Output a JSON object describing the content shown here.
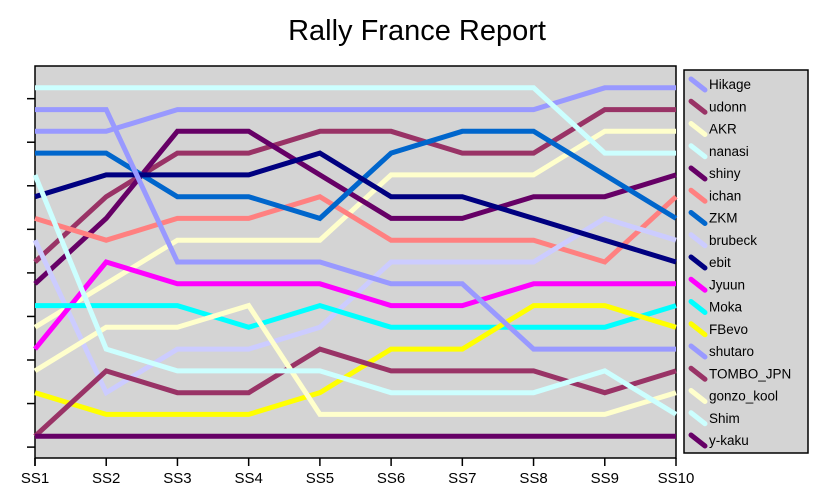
{
  "chart_data": {
    "type": "line",
    "title": "Rally France Report",
    "x_categories": [
      "SS1",
      "SS2",
      "SS3",
      "SS4",
      "SS5",
      "SS6",
      "SS7",
      "SS8",
      "SS9",
      "SS10"
    ],
    "y_axis": {
      "tick_labels_visible": false,
      "inverted": true,
      "min": 0,
      "max": 18,
      "ticks_every": 2,
      "gridlines": false,
      "values_meaning": "standings position 1-17 per special stage"
    },
    "legend_position": "right",
    "series": [
      {
        "name": "Hikage",
        "color": "#9999FF",
        "ranks": [
          3,
          3,
          2,
          2,
          2,
          2,
          2,
          2,
          1,
          1
        ]
      },
      {
        "name": "udonn",
        "color": "#993366",
        "ranks": [
          9,
          6,
          4,
          4,
          3,
          3,
          4,
          4,
          2,
          2
        ]
      },
      {
        "name": "AKR",
        "color": "#FFFFCC",
        "ranks": [
          12,
          10,
          8,
          8,
          8,
          5,
          5,
          5,
          3,
          3
        ]
      },
      {
        "name": "nanasi",
        "color": "#CCFFFF",
        "ranks": [
          1,
          1,
          1,
          1,
          1,
          1,
          1,
          1,
          4,
          4
        ]
      },
      {
        "name": "shiny",
        "color": "#660066",
        "ranks": [
          10,
          7,
          3,
          3,
          5,
          7,
          7,
          6,
          6,
          5
        ]
      },
      {
        "name": "ichan",
        "color": "#FF8080",
        "ranks": [
          7,
          8,
          7,
          7,
          6,
          8,
          8,
          8,
          9,
          6
        ]
      },
      {
        "name": "ZKM",
        "color": "#0066CC",
        "ranks": [
          4,
          4,
          6,
          6,
          7,
          4,
          3,
          3,
          5,
          7
        ]
      },
      {
        "name": "brubeck",
        "color": "#CCCCFF",
        "ranks": [
          8,
          15,
          13,
          13,
          12,
          9,
          9,
          9,
          7,
          8
        ]
      },
      {
        "name": "ebit",
        "color": "#000080",
        "ranks": [
          6,
          5,
          5,
          5,
          4,
          6,
          6,
          7,
          8,
          9
        ]
      },
      {
        "name": "Jyuun",
        "color": "#FF00FF",
        "ranks": [
          13,
          9,
          10,
          10,
          10,
          11,
          11,
          10,
          10,
          10
        ]
      },
      {
        "name": "Moka",
        "color": "#00FFFF",
        "ranks": [
          11,
          11,
          11,
          12,
          11,
          12,
          12,
          12,
          12,
          11
        ]
      },
      {
        "name": "FBevo",
        "color": "#FFFF00",
        "ranks": [
          15,
          16,
          16,
          16,
          15,
          13,
          13,
          11,
          11,
          12
        ]
      },
      {
        "name": "shutaro",
        "color": "#9999FF",
        "ranks": [
          2,
          2,
          9,
          9,
          9,
          10,
          10,
          13,
          13,
          13
        ]
      },
      {
        "name": "TOMBO_JPN",
        "color": "#993366",
        "ranks": [
          17,
          14,
          15,
          15,
          13,
          14,
          14,
          14,
          15,
          14
        ]
      },
      {
        "name": "gonzo_kool",
        "color": "#FFFFCC",
        "ranks": [
          14,
          12,
          12,
          11,
          16,
          16,
          16,
          16,
          16,
          15
        ]
      },
      {
        "name": "Shim",
        "color": "#CCFFFF",
        "ranks": [
          5,
          13,
          14,
          14,
          14,
          15,
          15,
          15,
          14,
          16
        ]
      },
      {
        "name": "y-kaku",
        "color": "#660066",
        "ranks": [
          17,
          17,
          17,
          17,
          17,
          17,
          17,
          17,
          17,
          17
        ]
      }
    ]
  },
  "colors": {
    "page_bg": "#FFFFFF",
    "plot_bg": "#D4D4D4",
    "legend_bg": "#D4D4D4",
    "axis": "#000000",
    "text": "#000000"
  }
}
